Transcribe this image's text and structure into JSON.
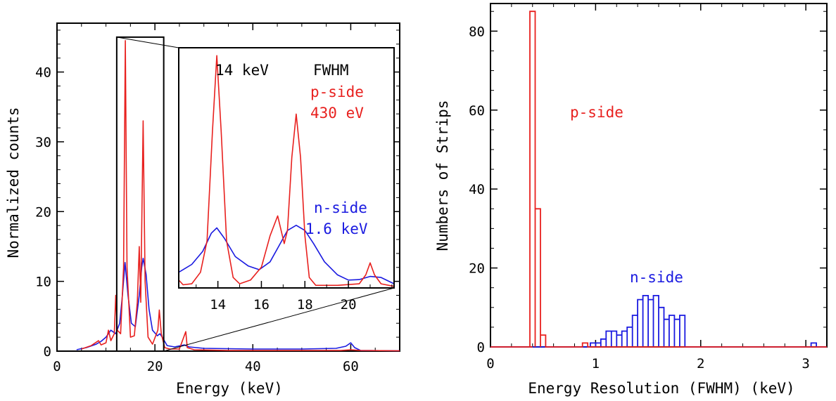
{
  "chart_data": [
    {
      "type": "line",
      "title": "",
      "xlabel": "Energy (keV)",
      "ylabel": "Normalized counts",
      "xlim": [
        0,
        70
      ],
      "ylim": [
        0,
        47
      ],
      "x_ticks": [
        0,
        20,
        40,
        60
      ],
      "y_ticks": [
        0,
        10,
        20,
        30,
        40
      ],
      "grid": false,
      "colors": {
        "p_side": "#e8201e",
        "n_side": "#1a1ae0"
      },
      "series": [
        {
          "name": "p-side",
          "color": "#e8201e",
          "points": [
            [
              5,
              0.3
            ],
            [
              7,
              0.8
            ],
            [
              8.5,
              1.5
            ],
            [
              9,
              0.9
            ],
            [
              10,
              1.2
            ],
            [
              10.5,
              3.0
            ],
            [
              11,
              1.5
            ],
            [
              11.7,
              2.5
            ],
            [
              12,
              8.0
            ],
            [
              12.3,
              3.0
            ],
            [
              13,
              2.5
            ],
            [
              13.6,
              12.0
            ],
            [
              13.95,
              44.5
            ],
            [
              14.3,
              12.0
            ],
            [
              15,
              2.0
            ],
            [
              15.8,
              2.2
            ],
            [
              16.4,
              7.0
            ],
            [
              16.8,
              15.0
            ],
            [
              17.1,
              7.0
            ],
            [
              17.6,
              33.0
            ],
            [
              18,
              10.0
            ],
            [
              18.6,
              2.0
            ],
            [
              19.5,
              1.0
            ],
            [
              20.6,
              3.0
            ],
            [
              20.9,
              5.9
            ],
            [
              21.3,
              2.5
            ],
            [
              22,
              0.5
            ],
            [
              23,
              0.3
            ],
            [
              25,
              0.3
            ],
            [
              26.3,
              2.8
            ],
            [
              26.6,
              0.5
            ],
            [
              28,
              0.2
            ],
            [
              35,
              0.1
            ],
            [
              47,
              0.1
            ],
            [
              58,
              0.1
            ],
            [
              60,
              0.2
            ],
            [
              62,
              0.1
            ],
            [
              70,
              0.05
            ]
          ]
        },
        {
          "name": "n-side",
          "color": "#1a1ae0",
          "points": [
            [
              4,
              0.2
            ],
            [
              6,
              0.5
            ],
            [
              8,
              1.0
            ],
            [
              9,
              1.4
            ],
            [
              10,
              2.0
            ],
            [
              11,
              3.0
            ],
            [
              12,
              2.5
            ],
            [
              12.8,
              4.0
            ],
            [
              13.3,
              7.5
            ],
            [
              13.9,
              12.7
            ],
            [
              14.5,
              8.0
            ],
            [
              15.2,
              4.0
            ],
            [
              16,
              3.5
            ],
            [
              16.8,
              8.0
            ],
            [
              17.3,
              12.0
            ],
            [
              17.6,
              13.3
            ],
            [
              18.2,
              11.0
            ],
            [
              18.8,
              6.0
            ],
            [
              19.5,
              3.0
            ],
            [
              20.5,
              2.2
            ],
            [
              21.0,
              2.5
            ],
            [
              21.5,
              2.0
            ],
            [
              22.5,
              0.8
            ],
            [
              24,
              0.6
            ],
            [
              26,
              0.9
            ],
            [
              27,
              0.6
            ],
            [
              30,
              0.4
            ],
            [
              40,
              0.3
            ],
            [
              48,
              0.3
            ],
            [
              50,
              0.3
            ],
            [
              57,
              0.4
            ],
            [
              59,
              0.7
            ],
            [
              60,
              1.2
            ],
            [
              60.8,
              0.5
            ],
            [
              62,
              0.1
            ],
            [
              70,
              0.05
            ]
          ]
        }
      ],
      "zoom_box": {
        "x": [
          12.2,
          21.8
        ],
        "y": [
          0,
          45
        ]
      },
      "inset": {
        "xlim": [
          12.2,
          22.1
        ],
        "ylim": [
          0,
          46
        ],
        "x_ticks": [
          14,
          16,
          18,
          20
        ],
        "annotations": [
          {
            "text": "14 keV",
            "color": "#000000"
          },
          {
            "text": "FWHM",
            "color": "#000000"
          },
          {
            "text": "p-side",
            "color": "#e8201e"
          },
          {
            "text": "430 eV",
            "color": "#e8201e"
          },
          {
            "text": "n-side",
            "color": "#1a1ae0"
          },
          {
            "text": "1.6 keV",
            "color": "#1a1ae0"
          }
        ],
        "series": [
          {
            "name": "p-side",
            "color": "#e8201e",
            "points": [
              [
                12.2,
                1.5
              ],
              [
                12.4,
                0.6
              ],
              [
                12.8,
                0.8
              ],
              [
                13.2,
                3.0
              ],
              [
                13.5,
                9.0
              ],
              [
                13.75,
                30.0
              ],
              [
                13.95,
                44.5
              ],
              [
                14.15,
                30.0
              ],
              [
                14.4,
                9.0
              ],
              [
                14.7,
                2.0
              ],
              [
                15.0,
                0.8
              ],
              [
                15.5,
                1.5
              ],
              [
                16.0,
                4.0
              ],
              [
                16.4,
                10.0
              ],
              [
                16.75,
                13.8
              ],
              [
                17.05,
                8.5
              ],
              [
                17.2,
                11.0
              ],
              [
                17.4,
                25.0
              ],
              [
                17.6,
                33.3
              ],
              [
                17.8,
                25.0
              ],
              [
                18.0,
                10.0
              ],
              [
                18.2,
                2.0
              ],
              [
                18.5,
                0.5
              ],
              [
                19.5,
                0.5
              ],
              [
                20.5,
                0.8
              ],
              [
                20.8,
                2.5
              ],
              [
                21.0,
                4.8
              ],
              [
                21.2,
                2.5
              ],
              [
                21.5,
                0.8
              ],
              [
                22.1,
                0.3
              ]
            ]
          },
          {
            "name": "n-side",
            "color": "#1a1ae0",
            "points": [
              [
                12.2,
                3.0
              ],
              [
                12.8,
                4.5
              ],
              [
                13.3,
                7.0
              ],
              [
                13.7,
                10.5
              ],
              [
                13.95,
                11.5
              ],
              [
                14.3,
                9.5
              ],
              [
                14.8,
                6.0
              ],
              [
                15.4,
                4.2
              ],
              [
                15.9,
                3.5
              ],
              [
                16.4,
                5.0
              ],
              [
                16.8,
                8.0
              ],
              [
                17.2,
                11.0
              ],
              [
                17.6,
                12.0
              ],
              [
                18.0,
                11.0
              ],
              [
                18.4,
                8.5
              ],
              [
                18.9,
                5.0
              ],
              [
                19.5,
                2.5
              ],
              [
                20.0,
                1.5
              ],
              [
                20.5,
                1.6
              ],
              [
                21.0,
                2.2
              ],
              [
                21.5,
                2.0
              ],
              [
                22.1,
                0.8
              ]
            ]
          }
        ]
      }
    },
    {
      "type": "bar",
      "title": "",
      "xlabel": "Energy Resolution (FWHM) (keV)",
      "ylabel": "Numbers of Strips",
      "xlim": [
        0,
        3.2
      ],
      "ylim": [
        0,
        87
      ],
      "x_ticks": [
        0,
        1,
        2,
        3
      ],
      "y_ticks": [
        0,
        20,
        40,
        60,
        80
      ],
      "grid": false,
      "histtype": "step",
      "bin_width": 0.05,
      "annotations": [
        {
          "text": "p-side",
          "color": "#e8201e"
        },
        {
          "text": "n-side",
          "color": "#1a1ae0"
        }
      ],
      "series": [
        {
          "name": "p-side",
          "color": "#e8201e",
          "bins": [
            [
              0.35,
              0
            ],
            [
              0.375,
              85
            ],
            [
              0.425,
              35
            ],
            [
              0.475,
              3
            ],
            [
              0.525,
              0
            ],
            [
              0.875,
              1
            ],
            [
              0.925,
              0
            ]
          ]
        },
        {
          "name": "n-side",
          "color": "#1a1ae0",
          "bins": [
            [
              0.95,
              1
            ],
            [
              1.0,
              1
            ],
            [
              1.05,
              2
            ],
            [
              1.1,
              4
            ],
            [
              1.15,
              4
            ],
            [
              1.2,
              3
            ],
            [
              1.25,
              4
            ],
            [
              1.3,
              5
            ],
            [
              1.35,
              8
            ],
            [
              1.4,
              12
            ],
            [
              1.45,
              13
            ],
            [
              1.5,
              12
            ],
            [
              1.55,
              13
            ],
            [
              1.6,
              10
            ],
            [
              1.65,
              7
            ],
            [
              1.7,
              8
            ],
            [
              1.75,
              7
            ],
            [
              1.8,
              8
            ],
            [
              1.85,
              0
            ],
            [
              1.9,
              0
            ],
            [
              3.05,
              1
            ],
            [
              3.1,
              0
            ]
          ]
        }
      ]
    }
  ]
}
